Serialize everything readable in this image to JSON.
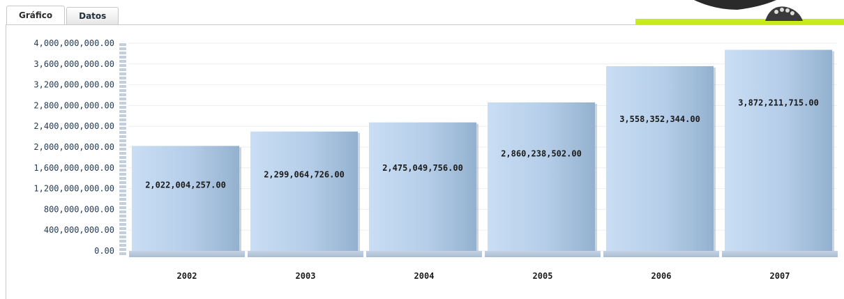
{
  "tabs": [
    {
      "label": "Gráfico",
      "active": true
    },
    {
      "label": "Datos",
      "active": false
    }
  ],
  "colors": {
    "accent": "#c8ec1a",
    "bar_light": "#c6dcf3",
    "bar_dark": "#93b1cf",
    "axis_text": "#243b55",
    "label_text": "#1a1a1a"
  },
  "chart_data": {
    "type": "bar",
    "categories": [
      "2002",
      "2003",
      "2004",
      "2005",
      "2006",
      "2007"
    ],
    "values": [
      2022004257.0,
      2299064726.0,
      2475049756.0,
      2860238502.0,
      3558352344.0,
      3872211715.0
    ],
    "data_labels": [
      "2,022,004,257.00",
      "2,299,064,726.00",
      "2,475,049,756.00",
      "2,860,238,502.00",
      "3,558,352,344.00",
      "3,872,211,715.00"
    ],
    "y_ticks": [
      "0.00",
      "400,000,000.00",
      "800,000,000.00",
      "1,200,000,000.00",
      "1,600,000,000.00",
      "2,000,000,000.00",
      "2,400,000,000.00",
      "2,800,000,000.00",
      "3,200,000,000.00",
      "3,600,000,000.00",
      "4,000,000,000.00"
    ],
    "ylim": [
      0,
      4000000000
    ],
    "title": "",
    "xlabel": "",
    "ylabel": "",
    "grid": true,
    "legend": "none"
  }
}
